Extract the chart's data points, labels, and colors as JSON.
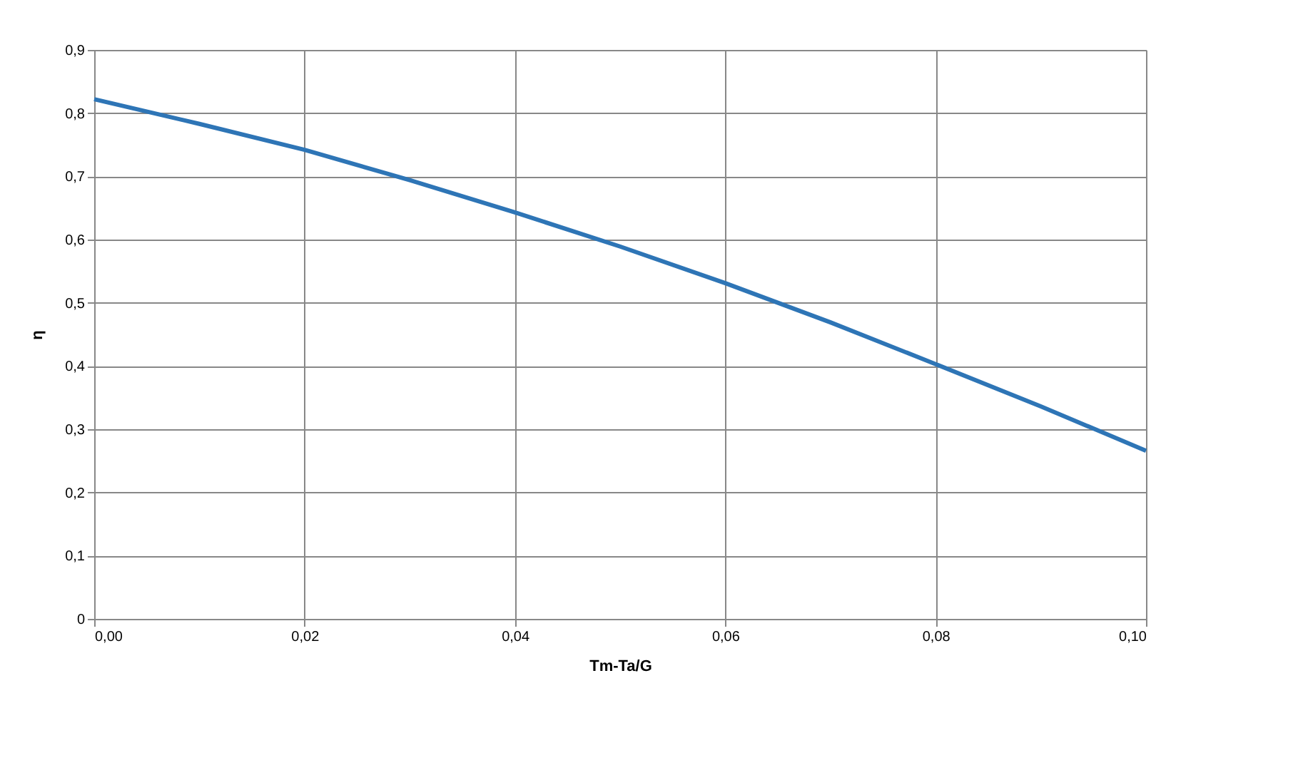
{
  "chart_data": {
    "type": "line",
    "xlabel": "Tm-Ta/G",
    "ylabel": "η",
    "x": [
      0.0,
      0.01,
      0.02,
      0.03,
      0.04,
      0.05,
      0.06,
      0.07,
      0.08,
      0.09,
      0.1
    ],
    "series": [
      {
        "color": "#2e75b6",
        "values": [
          0.822,
          0.783,
          0.742,
          0.694,
          0.643,
          0.589,
          0.531,
          0.469,
          0.403,
          0.336,
          0.266
        ]
      }
    ],
    "xlim": [
      0,
      0.1
    ],
    "xticks": [
      {
        "value": 0,
        "label": "0,00"
      },
      {
        "value": 0.02,
        "label": "0,02"
      },
      {
        "value": 0.04,
        "label": "0,04"
      },
      {
        "value": 0.06,
        "label": "0,06"
      },
      {
        "value": 0.08,
        "label": "0,08"
      },
      {
        "value": 0.1,
        "label": "0,10"
      }
    ],
    "ylim": [
      0,
      0.9
    ],
    "yticks": [
      0,
      {
        "value": 0.1,
        "label": "0,1"
      },
      {
        "value": 0.2,
        "label": "0,2"
      },
      {
        "value": 0.3,
        "label": "0,3"
      },
      {
        "value": 0.4,
        "label": "0,4"
      },
      {
        "value": 0.5,
        "label": "0,5"
      },
      {
        "value": 0.6,
        "label": "0,6"
      },
      {
        "value": 0.7,
        "label": "0,7"
      },
      {
        "value": 0.8,
        "label": "0,8"
      },
      {
        "value": 0.9,
        "label": "0,9"
      }
    ],
    "grid": true,
    "marker": "none",
    "line_style": "solid"
  }
}
